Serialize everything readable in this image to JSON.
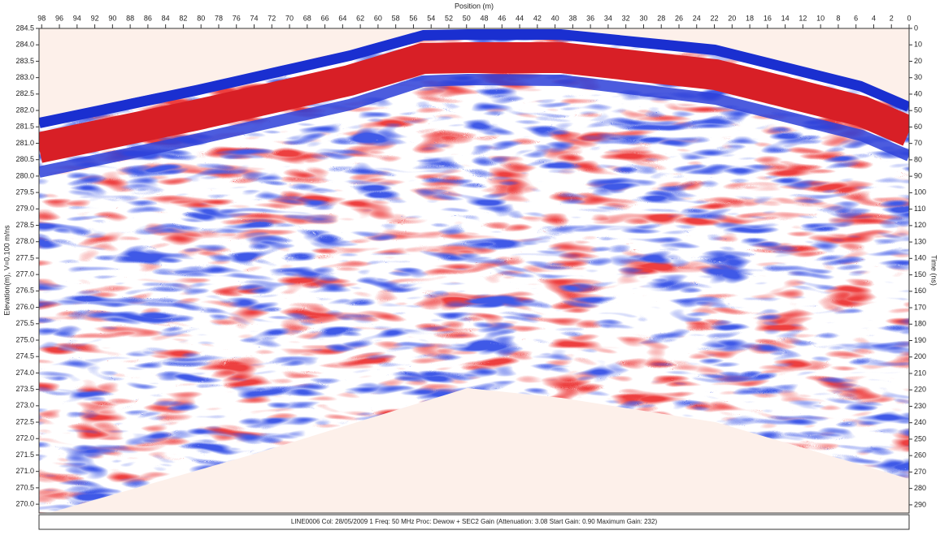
{
  "chart_data": {
    "type": "radargram",
    "x_label": "Position (m)",
    "y_label": "Elevation(m), V=0.100 m/ns",
    "y2_label": "Time (ns)",
    "footer": "LINE0006  Col: 28/05/2009 1 Freq: 50 MHz Proc: Dewow + SEC2 Gain (Attenuation: 3.08 Start Gain: 0.90 Maximum Gain: 232)",
    "xlim": [
      98.3,
      0
    ],
    "xticks": [
      98,
      96,
      94,
      92,
      90,
      88,
      86,
      84,
      82,
      80,
      78,
      76,
      74,
      72,
      70,
      68,
      66,
      64,
      62,
      60,
      58,
      56,
      54,
      52,
      50,
      48,
      46,
      44,
      42,
      40,
      38,
      36,
      34,
      32,
      30,
      28,
      26,
      24,
      22,
      20,
      18,
      16,
      14,
      12,
      10,
      8,
      6,
      4,
      2,
      0
    ],
    "ylim": [
      269.73,
      284.5
    ],
    "yticks": [
      {
        "value": 270,
        "label": "270.0"
      },
      270.5,
      {
        "value": 271,
        "label": "271.0"
      },
      271.5,
      {
        "value": 272,
        "label": "272.0"
      },
      272.5,
      {
        "value": 273,
        "label": "273.0"
      },
      273.5,
      {
        "value": 274,
        "label": "274.0"
      },
      274.5,
      {
        "value": 275,
        "label": "275.0"
      },
      275.5,
      {
        "value": 276,
        "label": "276.0"
      },
      276.5,
      {
        "value": 277,
        "label": "277.0"
      },
      277.5,
      {
        "value": 278,
        "label": "278.0"
      },
      278.5,
      {
        "value": 279,
        "label": "279.0"
      },
      279.5,
      {
        "value": 280,
        "label": "280.0"
      },
      280.5,
      {
        "value": 281,
        "label": "281.0"
      },
      281.5,
      {
        "value": 282,
        "label": "282.0"
      },
      282.5,
      {
        "value": 283,
        "label": "283.0"
      },
      283.5,
      {
        "value": 284,
        "label": "284.0"
      },
      284.5
    ],
    "y2lim": [
      0,
      295
    ],
    "y2ticks": [
      0,
      10,
      20,
      30,
      40,
      50,
      60,
      70,
      80,
      90,
      100,
      110,
      120,
      130,
      140,
      150,
      160,
      170,
      180,
      190,
      200,
      210,
      220,
      230,
      240,
      250,
      260,
      270,
      280,
      290
    ]
  }
}
